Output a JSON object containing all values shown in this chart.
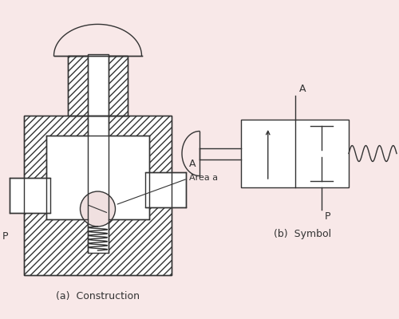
{
  "bg_color": "#f8e8e8",
  "line_color": "#333333",
  "label_construction": "(a)  Construction",
  "label_symbol": "(b)  Symbol",
  "label_A_left": "A",
  "label_Area_a": "Area a",
  "label_P_left": "P",
  "label_A_right": "A",
  "label_P_right": "P",
  "figsize": [
    5.0,
    4.0
  ],
  "dpi": 100
}
